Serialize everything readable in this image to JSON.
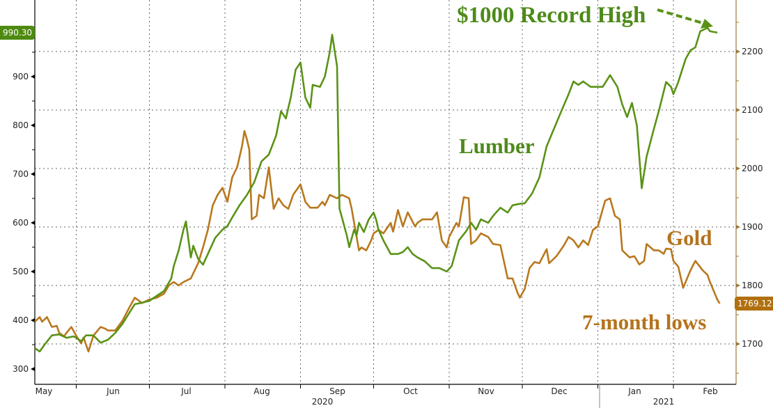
{
  "chart_data": {
    "type": "line",
    "title": "",
    "x_axis": {
      "type": "date",
      "range": [
        "2020-05-15",
        "2021-02-24"
      ],
      "month_labels": [
        "May",
        "Jun",
        "Jul",
        "Aug",
        "Sep",
        "Oct",
        "Nov",
        "Dec",
        "Jan",
        "Feb"
      ],
      "month_dates": [
        "2020-05-01",
        "2020-06-01",
        "2020-07-01",
        "2020-08-01",
        "2020-09-01",
        "2020-10-01",
        "2020-11-01",
        "2020-12-01",
        "2021-01-01",
        "2021-02-01"
      ],
      "year_labels": [
        {
          "label": "2020",
          "date": "2020-09-10"
        },
        {
          "label": "2021",
          "date": "2021-01-28"
        }
      ]
    },
    "y_left": {
      "range": [
        257,
        1050
      ],
      "ticks": [
        300,
        400,
        500,
        600,
        700,
        800,
        900
      ],
      "tick_labels": [
        "300",
        "400",
        "500",
        "600",
        "700",
        "800",
        "900"
      ]
    },
    "y_right": {
      "range": [
        1637,
        2325
      ],
      "ticks": [
        1700,
        1800,
        1900,
        2000,
        2100,
        2200
      ],
      "tick_labels": [
        "1700",
        "1800",
        "1900",
        "2000",
        "2100",
        "2200"
      ]
    },
    "grid": true,
    "colors": {
      "lumber": "#5a9216",
      "gold": "#b8781e",
      "lumber_text": "#4e8a1a",
      "gold_text": "#b5731c"
    },
    "series": [
      {
        "name": "Lumber",
        "axis": "left",
        "points": [
          [
            "2020-05-15",
            343
          ],
          [
            "2020-05-17",
            336
          ],
          [
            "2020-05-19",
            350
          ],
          [
            "2020-05-22",
            369
          ],
          [
            "2020-05-25",
            371
          ],
          [
            "2020-05-28",
            364
          ],
          [
            "2020-05-31",
            367
          ],
          [
            "2020-06-03",
            357
          ],
          [
            "2020-06-05",
            369
          ],
          [
            "2020-06-08",
            369
          ],
          [
            "2020-06-11",
            354
          ],
          [
            "2020-06-14",
            360
          ],
          [
            "2020-06-17",
            374
          ],
          [
            "2020-06-20",
            393
          ],
          [
            "2020-06-23",
            417
          ],
          [
            "2020-06-25",
            433
          ],
          [
            "2020-06-28",
            436
          ],
          [
            "2020-07-01",
            440
          ],
          [
            "2020-07-04",
            450
          ],
          [
            "2020-07-07",
            460
          ],
          [
            "2020-07-10",
            486
          ],
          [
            "2020-07-11",
            511
          ],
          [
            "2020-07-13",
            543
          ],
          [
            "2020-07-15",
            586
          ],
          [
            "2020-07-16",
            603
          ],
          [
            "2020-07-18",
            529
          ],
          [
            "2020-07-19",
            553
          ],
          [
            "2020-07-21",
            526
          ],
          [
            "2020-07-23",
            514
          ],
          [
            "2020-07-25",
            536
          ],
          [
            "2020-07-28",
            569
          ],
          [
            "2020-07-31",
            586
          ],
          [
            "2020-08-02",
            593
          ],
          [
            "2020-08-04",
            611
          ],
          [
            "2020-08-07",
            636
          ],
          [
            "2020-08-10",
            657
          ],
          [
            "2020-08-13",
            683
          ],
          [
            "2020-08-16",
            726
          ],
          [
            "2020-08-19",
            740
          ],
          [
            "2020-08-22",
            779
          ],
          [
            "2020-08-24",
            829
          ],
          [
            "2020-08-26",
            814
          ],
          [
            "2020-08-28",
            857
          ],
          [
            "2020-08-30",
            914
          ],
          [
            "2020-09-01",
            929
          ],
          [
            "2020-09-03",
            857
          ],
          [
            "2020-09-05",
            836
          ],
          [
            "2020-09-06",
            883
          ],
          [
            "2020-09-09",
            879
          ],
          [
            "2020-09-11",
            900
          ],
          [
            "2020-09-13",
            950
          ],
          [
            "2020-09-14",
            986
          ],
          [
            "2020-09-16",
            921
          ],
          [
            "2020-09-17",
            629
          ],
          [
            "2020-09-18",
            611
          ],
          [
            "2020-09-20",
            574
          ],
          [
            "2020-09-21",
            550
          ],
          [
            "2020-09-23",
            586
          ],
          [
            "2020-09-24",
            574
          ],
          [
            "2020-09-25",
            600
          ],
          [
            "2020-09-27",
            581
          ],
          [
            "2020-09-29",
            607
          ],
          [
            "2020-10-01",
            621
          ],
          [
            "2020-10-02",
            607
          ],
          [
            "2020-10-03",
            586
          ],
          [
            "2020-10-05",
            564
          ],
          [
            "2020-10-08",
            536
          ],
          [
            "2020-10-11",
            536
          ],
          [
            "2020-10-13",
            540
          ],
          [
            "2020-10-15",
            550
          ],
          [
            "2020-10-17",
            536
          ],
          [
            "2020-10-19",
            529
          ],
          [
            "2020-10-22",
            521
          ],
          [
            "2020-10-25",
            507
          ],
          [
            "2020-10-28",
            507
          ],
          [
            "2020-10-31",
            500
          ],
          [
            "2020-11-02",
            511
          ],
          [
            "2020-11-05",
            564
          ],
          [
            "2020-11-08",
            583
          ],
          [
            "2020-11-10",
            600
          ],
          [
            "2020-11-12",
            586
          ],
          [
            "2020-11-14",
            607
          ],
          [
            "2020-11-17",
            600
          ],
          [
            "2020-11-19",
            614
          ],
          [
            "2020-11-22",
            631
          ],
          [
            "2020-11-25",
            621
          ],
          [
            "2020-11-27",
            636
          ],
          [
            "2020-11-30",
            639
          ],
          [
            "2020-12-02",
            640
          ],
          [
            "2020-12-05",
            660
          ],
          [
            "2020-12-08",
            693
          ],
          [
            "2020-12-11",
            757
          ],
          [
            "2020-12-14",
            793
          ],
          [
            "2020-12-17",
            829
          ],
          [
            "2020-12-20",
            864
          ],
          [
            "2020-12-22",
            890
          ],
          [
            "2020-12-24",
            883
          ],
          [
            "2020-12-26",
            890
          ],
          [
            "2020-12-29",
            879
          ],
          [
            "2021-01-01",
            879
          ],
          [
            "2021-01-03",
            879
          ],
          [
            "2021-01-06",
            903
          ],
          [
            "2021-01-09",
            879
          ],
          [
            "2021-01-11",
            843
          ],
          [
            "2021-01-13",
            817
          ],
          [
            "2021-01-15",
            846
          ],
          [
            "2021-01-17",
            800
          ],
          [
            "2021-01-19",
            671
          ],
          [
            "2021-01-21",
            736
          ],
          [
            "2021-01-24",
            793
          ],
          [
            "2021-01-26",
            829
          ],
          [
            "2021-01-29",
            889
          ],
          [
            "2021-01-31",
            879
          ],
          [
            "2021-02-01",
            864
          ],
          [
            "2021-02-03",
            889
          ],
          [
            "2021-02-06",
            936
          ],
          [
            "2021-02-08",
            954
          ],
          [
            "2021-02-10",
            960
          ],
          [
            "2021-02-12",
            993
          ],
          [
            "2021-02-15",
            1000
          ],
          [
            "2021-02-16",
            993
          ],
          [
            "2021-02-19",
            990.3
          ]
        ]
      },
      {
        "name": "Gold",
        "axis": "right",
        "points": [
          [
            "2020-05-15",
            1738
          ],
          [
            "2020-05-17",
            1746
          ],
          [
            "2020-05-18",
            1738
          ],
          [
            "2020-05-20",
            1746
          ],
          [
            "2020-05-22",
            1729
          ],
          [
            "2020-05-24",
            1731
          ],
          [
            "2020-05-25",
            1719
          ],
          [
            "2020-05-27",
            1713
          ],
          [
            "2020-05-28",
            1719
          ],
          [
            "2020-05-30",
            1729
          ],
          [
            "2020-06-01",
            1714
          ],
          [
            "2020-06-03",
            1701
          ],
          [
            "2020-06-04",
            1711
          ],
          [
            "2020-06-06",
            1687
          ],
          [
            "2020-06-08",
            1714
          ],
          [
            "2020-06-11",
            1729
          ],
          [
            "2020-06-13",
            1726
          ],
          [
            "2020-06-14",
            1723
          ],
          [
            "2020-06-17",
            1723
          ],
          [
            "2020-06-20",
            1740
          ],
          [
            "2020-06-23",
            1764
          ],
          [
            "2020-06-25",
            1779
          ],
          [
            "2020-06-28",
            1770
          ],
          [
            "2020-07-01",
            1776
          ],
          [
            "2020-07-04",
            1779
          ],
          [
            "2020-07-07",
            1786
          ],
          [
            "2020-07-09",
            1800
          ],
          [
            "2020-07-11",
            1806
          ],
          [
            "2020-07-13",
            1800
          ],
          [
            "2020-07-15",
            1806
          ],
          [
            "2020-07-18",
            1812
          ],
          [
            "2020-07-21",
            1838
          ],
          [
            "2020-07-23",
            1865
          ],
          [
            "2020-07-25",
            1895
          ],
          [
            "2020-07-27",
            1937
          ],
          [
            "2020-07-29",
            1955
          ],
          [
            "2020-07-31",
            1967
          ],
          [
            "2020-08-02",
            1943
          ],
          [
            "2020-08-04",
            1985
          ],
          [
            "2020-08-06",
            2002
          ],
          [
            "2020-08-08",
            2038
          ],
          [
            "2020-08-09",
            2064
          ],
          [
            "2020-08-10",
            2050
          ],
          [
            "2020-08-11",
            2032
          ],
          [
            "2020-08-12",
            1913
          ],
          [
            "2020-08-14",
            1919
          ],
          [
            "2020-08-15",
            1955
          ],
          [
            "2020-08-17",
            1949
          ],
          [
            "2020-08-19",
            2002
          ],
          [
            "2020-08-21",
            1931
          ],
          [
            "2020-08-23",
            1949
          ],
          [
            "2020-08-25",
            1937
          ],
          [
            "2020-08-27",
            1931
          ],
          [
            "2020-08-29",
            1955
          ],
          [
            "2020-08-31",
            1967
          ],
          [
            "2020-09-01",
            1973
          ],
          [
            "2020-09-03",
            1943
          ],
          [
            "2020-09-05",
            1933
          ],
          [
            "2020-09-08",
            1933
          ],
          [
            "2020-09-10",
            1943
          ],
          [
            "2020-09-11",
            1937
          ],
          [
            "2020-09-13",
            1955
          ],
          [
            "2020-09-16",
            1949
          ],
          [
            "2020-09-18",
            1955
          ],
          [
            "2020-09-21",
            1949
          ],
          [
            "2020-09-22",
            1931
          ],
          [
            "2020-09-23",
            1907
          ],
          [
            "2020-09-25",
            1860
          ],
          [
            "2020-09-26",
            1865
          ],
          [
            "2020-09-28",
            1860
          ],
          [
            "2020-09-30",
            1877
          ],
          [
            "2020-10-01",
            1889
          ],
          [
            "2020-10-03",
            1895
          ],
          [
            "2020-10-05",
            1889
          ],
          [
            "2020-10-08",
            1907
          ],
          [
            "2020-10-09",
            1892
          ],
          [
            "2020-10-11",
            1929
          ],
          [
            "2020-10-13",
            1901
          ],
          [
            "2020-10-15",
            1925
          ],
          [
            "2020-10-18",
            1901
          ],
          [
            "2020-10-19",
            1907
          ],
          [
            "2020-10-21",
            1913
          ],
          [
            "2020-10-23",
            1913
          ],
          [
            "2020-10-25",
            1913
          ],
          [
            "2020-10-27",
            1925
          ],
          [
            "2020-10-29",
            1877
          ],
          [
            "2020-10-31",
            1865
          ],
          [
            "2020-11-01",
            1883
          ],
          [
            "2020-11-04",
            1907
          ],
          [
            "2020-11-05",
            1901
          ],
          [
            "2020-11-07",
            1951
          ],
          [
            "2020-11-09",
            1949
          ],
          [
            "2020-11-10",
            1871
          ],
          [
            "2020-11-12",
            1877
          ],
          [
            "2020-11-14",
            1889
          ],
          [
            "2020-11-17",
            1883
          ],
          [
            "2020-11-19",
            1871
          ],
          [
            "2020-11-22",
            1869
          ],
          [
            "2020-11-25",
            1812
          ],
          [
            "2020-11-27",
            1812
          ],
          [
            "2020-11-29",
            1788
          ],
          [
            "2020-11-30",
            1779
          ],
          [
            "2020-12-02",
            1794
          ],
          [
            "2020-12-04",
            1830
          ],
          [
            "2020-12-06",
            1840
          ],
          [
            "2020-12-08",
            1838
          ],
          [
            "2020-12-11",
            1862
          ],
          [
            "2020-12-12",
            1838
          ],
          [
            "2020-12-15",
            1850
          ],
          [
            "2020-12-18",
            1868
          ],
          [
            "2020-12-20",
            1883
          ],
          [
            "2020-12-22",
            1877
          ],
          [
            "2020-12-24",
            1865
          ],
          [
            "2020-12-26",
            1877
          ],
          [
            "2020-12-28",
            1869
          ],
          [
            "2020-12-30",
            1895
          ],
          [
            "2021-01-01",
            1901
          ],
          [
            "2021-01-04",
            1945
          ],
          [
            "2021-01-06",
            1949
          ],
          [
            "2021-01-08",
            1919
          ],
          [
            "2021-01-10",
            1913
          ],
          [
            "2021-01-11",
            1860
          ],
          [
            "2021-01-14",
            1848
          ],
          [
            "2021-01-16",
            1850
          ],
          [
            "2021-01-18",
            1836
          ],
          [
            "2021-01-20",
            1842
          ],
          [
            "2021-01-21",
            1871
          ],
          [
            "2021-01-24",
            1860
          ],
          [
            "2021-01-26",
            1860
          ],
          [
            "2021-01-28",
            1854
          ],
          [
            "2021-01-29",
            1863
          ],
          [
            "2021-01-31",
            1862
          ],
          [
            "2021-02-01",
            1842
          ],
          [
            "2021-02-03",
            1832
          ],
          [
            "2021-02-05",
            1796
          ],
          [
            "2021-02-08",
            1826
          ],
          [
            "2021-02-10",
            1842
          ],
          [
            "2021-02-13",
            1826
          ],
          [
            "2021-02-15",
            1818
          ],
          [
            "2021-02-16",
            1806
          ],
          [
            "2021-02-19",
            1776
          ],
          [
            "2021-02-20",
            1769.12
          ]
        ]
      }
    ],
    "last_values": {
      "lumber": "990.30",
      "gold": "1769.12"
    },
    "annotations": {
      "record": "$1000 Record High",
      "lumber": "Lumber",
      "gold": "Gold",
      "lows": "7-month lows"
    }
  }
}
